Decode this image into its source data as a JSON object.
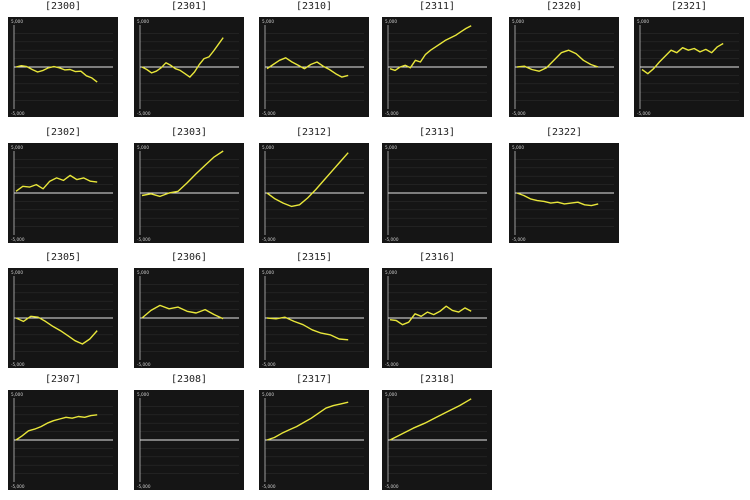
{
  "chart_data": [
    {
      "id": "2300",
      "type": "line",
      "title": "[2300]",
      "ytick_top": "5,000",
      "ytick_bottom": "-5,000",
      "ylim": [
        -5000,
        5000
      ],
      "color": "#e8e63a",
      "values": [
        0,
        150,
        50,
        -300,
        -600,
        -400,
        -100,
        50,
        -100,
        -350,
        -300,
        -550,
        -500,
        -1050,
        -1300,
        -1800
      ]
    },
    {
      "id": "2301",
      "type": "line",
      "title": "[2301]",
      "ytick_top": "5,000",
      "ytick_bottom": "-5,000",
      "ylim": [
        -5000,
        5000
      ],
      "color": "#e8e63a",
      "values": [
        0,
        -300,
        -700,
        -500,
        -100,
        500,
        200,
        -200,
        -400,
        -800,
        -1200,
        -600,
        300,
        1000,
        1200,
        1900,
        2700,
        3500
      ]
    },
    {
      "id": "2310",
      "type": "line",
      "title": "[2310]",
      "ytick_top": "5,000",
      "ytick_bottom": "-5,000",
      "ylim": [
        -5000,
        5000
      ],
      "color": "#e8e63a",
      "values": [
        -200,
        300,
        800,
        1100,
        600,
        200,
        -200,
        300,
        600,
        100,
        -300,
        -800,
        -1200,
        -1000
      ]
    },
    {
      "id": "2311",
      "type": "line",
      "title": "[2311]",
      "ytick_top": "5,000",
      "ytick_bottom": "-5,000",
      "ylim": [
        -5000,
        5000
      ],
      "color": "#e8e63a",
      "values": [
        -200,
        -400,
        0,
        200,
        -100,
        800,
        600,
        1500,
        2000,
        2400,
        2800,
        3200,
        3500,
        3800,
        4200,
        4600,
        4900
      ]
    },
    {
      "id": "2320",
      "type": "line",
      "title": "[2320]",
      "ytick_top": "5,000",
      "ytick_bottom": "-5,000",
      "ylim": [
        -5000,
        5000
      ],
      "color": "#e8e63a",
      "values": [
        0,
        100,
        -300,
        -500,
        -100,
        800,
        1700,
        2000,
        1600,
        800,
        300,
        0
      ]
    },
    {
      "id": "2321",
      "type": "line",
      "title": "[2321]",
      "ytick_top": "5,000",
      "ytick_bottom": "-5,000",
      "ylim": [
        -5000,
        5000
      ],
      "color": "#e8e63a",
      "values": [
        -300,
        -800,
        -200,
        600,
        1300,
        2000,
        1700,
        2300,
        2000,
        2200,
        1800,
        2100,
        1700,
        2400,
        2800
      ]
    },
    {
      "id": "2302",
      "type": "line",
      "title": "[2302]",
      "ytick_top": "5,000",
      "ytick_bottom": "-5,000",
      "ylim": [
        -5000,
        5000
      ],
      "color": "#e8e63a",
      "values": [
        200,
        800,
        700,
        1000,
        500,
        1400,
        1800,
        1500,
        2100,
        1600,
        1800,
        1400,
        1300
      ]
    },
    {
      "id": "2303",
      "type": "line",
      "title": "[2303]",
      "ytick_top": "5,000",
      "ytick_bottom": "-5,000",
      "ylim": [
        -5000,
        5000
      ],
      "color": "#e8e63a",
      "values": [
        -300,
        -100,
        -400,
        0,
        200,
        1200,
        2300,
        3300,
        4300,
        5000
      ]
    },
    {
      "id": "2312",
      "type": "line",
      "title": "[2312]",
      "ytick_top": "5,000",
      "ytick_bottom": "-5,000",
      "ylim": [
        -5000,
        5000
      ],
      "color": "#e8e63a",
      "values": [
        0,
        -700,
        -1200,
        -1600,
        -1400,
        -600,
        400,
        1500,
        2600,
        3700,
        4800
      ]
    },
    {
      "id": "2313",
      "type": "line",
      "title": "[2313]",
      "ytick_top": "5,000",
      "ytick_bottom": "-5,000",
      "ylim": [
        -5000,
        5000
      ],
      "color": "#e8e63a",
      "values": []
    },
    {
      "id": "2322",
      "type": "line",
      "title": "[2322]",
      "ytick_top": "5,000",
      "ytick_bottom": "-5,000",
      "ylim": [
        -5000,
        5000
      ],
      "color": "#e8e63a",
      "values": [
        0,
        -300,
        -700,
        -900,
        -1000,
        -1200,
        -1100,
        -1300,
        -1200,
        -1100,
        -1400,
        -1500,
        -1300
      ]
    },
    {
      "id": "2305",
      "type": "line",
      "title": "[2305]",
      "ytick_top": "5,000",
      "ytick_bottom": "-5,000",
      "ylim": [
        -5000,
        5000
      ],
      "color": "#e8e63a",
      "values": [
        0,
        -400,
        200,
        100,
        -400,
        -1000,
        -1500,
        -2100,
        -2700,
        -3100,
        -2500,
        -1500
      ]
    },
    {
      "id": "2306",
      "type": "line",
      "title": "[2306]",
      "ytick_top": "5,000",
      "ytick_bottom": "-5,000",
      "ylim": [
        -5000,
        5000
      ],
      "color": "#e8e63a",
      "values": [
        0,
        900,
        1500,
        1100,
        1300,
        800,
        600,
        1000,
        400,
        -100
      ]
    },
    {
      "id": "2315",
      "type": "line",
      "title": "[2315]",
      "ytick_top": "5,000",
      "ytick_bottom": "-5,000",
      "ylim": [
        -5000,
        5000
      ],
      "color": "#e8e63a",
      "values": [
        0,
        -100,
        100,
        -400,
        -800,
        -1400,
        -1800,
        -2000,
        -2500,
        -2600
      ]
    },
    {
      "id": "2316",
      "type": "line",
      "title": "[2316]",
      "ytick_top": "5,000",
      "ytick_bottom": "-5,000",
      "ylim": [
        -5000,
        5000
      ],
      "color": "#e8e63a",
      "values": [
        -200,
        -300,
        -800,
        -500,
        500,
        200,
        700,
        400,
        800,
        1400,
        900,
        700,
        1200,
        800
      ]
    },
    {
      "id": "2307",
      "type": "line",
      "title": "[2307]",
      "ytick_top": "5,000",
      "ytick_bottom": "-5,000",
      "ylim": [
        -5000,
        5000
      ],
      "color": "#e8e63a",
      "values": [
        0,
        500,
        1100,
        1300,
        1600,
        2000,
        2300,
        2500,
        2700,
        2600,
        2800,
        2700,
        2900,
        3000
      ]
    },
    {
      "id": "2308",
      "type": "line",
      "title": "[2308]",
      "ytick_top": "5,000",
      "ytick_bottom": "-5,000",
      "ylim": [
        -5000,
        5000
      ],
      "color": "#e8e63a",
      "values": []
    },
    {
      "id": "2317",
      "type": "line",
      "title": "[2317]",
      "ytick_top": "5,000",
      "ytick_bottom": "-5,000",
      "ylim": [
        -5000,
        5000
      ],
      "color": "#e8e63a",
      "values": [
        0,
        300,
        800,
        1200,
        1600,
        2100,
        2600,
        3200,
        3800,
        4100,
        4300,
        4500
      ]
    },
    {
      "id": "2318",
      "type": "line",
      "title": "[2318]",
      "ytick_top": "5,000",
      "ytick_bottom": "-5,000",
      "ylim": [
        -5000,
        5000
      ],
      "color": "#e8e63a",
      "values": [
        0,
        700,
        1400,
        2000,
        2700,
        3400,
        4100,
        4900
      ]
    }
  ]
}
